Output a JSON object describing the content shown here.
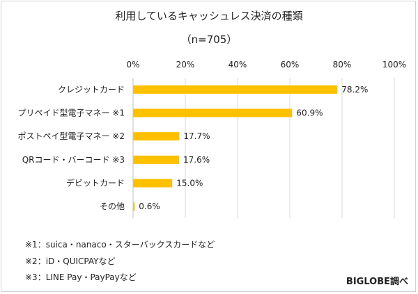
{
  "chart_data": {
    "type": "bar",
    "orientation": "horizontal",
    "title": "利用しているキャッシュレス決済の種類",
    "subtitle": "（n=705）",
    "categories": [
      "クレジットカード",
      "プリペイド型電子マネー ※1",
      "ポストペイ型電子マネー ※2",
      "QRコード・バーコード ※3",
      "デビットカード",
      "その他"
    ],
    "values": [
      78.2,
      60.9,
      17.7,
      17.6,
      15.0,
      0.6
    ],
    "value_labels": [
      "78.2%",
      "60.9%",
      "17.7%",
      "17.6%",
      "15.0%",
      "0.6%"
    ],
    "x_ticks": [
      "0%",
      "20%",
      "40%",
      "60%",
      "80%",
      "100%"
    ],
    "xlim": [
      0,
      100
    ],
    "grid": true,
    "bar_color": "#FFC000",
    "grid_color": "#D9D9D9"
  },
  "notes": [
    "※1：suica・nanaco・スターバックスカードなど",
    "※2：iD・QUICPAYなど",
    "※3：LINE Pay・PayPayなど"
  ],
  "source": "BIGLOBE調べ"
}
